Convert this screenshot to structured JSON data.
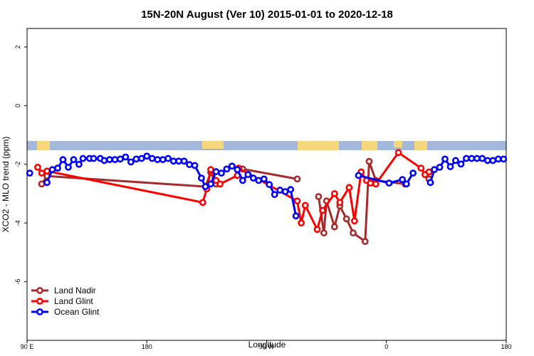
{
  "chart_data": {
    "type": "line",
    "title": "15N-20N August (Ver 10)   2015-01-01 to 2020-12-18",
    "x_label": "Longitude",
    "y_label": "XCO2 - MLO trend (ppm)",
    "xlim": [
      90,
      450
    ],
    "xticks": [
      {
        "value": 90,
        "label": "90 E"
      },
      {
        "value": 180,
        "label": "180"
      },
      {
        "value": 270,
        "label": "90 W"
      },
      {
        "value": 360,
        "label": "0"
      },
      {
        "value": 450,
        "label": "180"
      }
    ],
    "xticks_extra": [
      {
        "value": 450,
        "label": "180"
      }
    ],
    "ylim": [
      -8,
      2.63
    ],
    "yticks": [
      2,
      0,
      -2,
      -4,
      -6
    ],
    "legend": "bottom-left",
    "series": [
      {
        "name": "Land Nadir",
        "color": "#a52a2a",
        "x": [
          101,
          105,
          224,
          228,
          232,
          249,
          252,
          293,
          305,
          309,
          313,
          315,
          321,
          325,
          330,
          335,
          344,
          347,
          352,
          374,
          389,
          392
        ],
        "values": [
          -2.67,
          -2.4,
          -2.76,
          -2.28,
          -2.67,
          null,
          -2.16,
          -2.5,
          null,
          -3.1,
          -4.34,
          -3.25,
          -4.13,
          -3.42,
          -3.86,
          -4.34,
          -4.63,
          -1.9,
          -2.55,
          -2.67,
          null,
          -2.5
        ]
      },
      {
        "name": "Land Glint",
        "color": "#ff0000",
        "x": [
          98,
          101,
          105,
          222,
          225,
          228,
          232,
          235,
          248,
          249,
          293,
          296,
          299,
          308,
          312,
          321,
          325,
          332,
          336,
          341,
          345,
          348,
          352,
          369,
          386,
          389,
          392
        ],
        "values": [
          -2.1,
          -2.3,
          -2.23,
          -3.3,
          -2.84,
          -2.18,
          -2.55,
          -2.67,
          -2.38,
          -2.13,
          -3.25,
          -4.0,
          -3.4,
          -4.22,
          -3.57,
          -3.0,
          -3.3,
          -2.79,
          -3.93,
          -2.26,
          -2.55,
          -2.64,
          -2.67,
          -1.6,
          -2.13,
          -2.35,
          -2.26
        ]
      },
      {
        "name": "Ocean Glint",
        "color": "#0000ff",
        "x": [
          92,
          100,
          105,
          109,
          113,
          117,
          121,
          125,
          129,
          132,
          137,
          140,
          145,
          148,
          152,
          156,
          160,
          164,
          168,
          172,
          176,
          180,
          184,
          188,
          192,
          196,
          200,
          204,
          208,
          212,
          216,
          221,
          224,
          228,
          232,
          236,
          240,
          244,
          248,
          252,
          256,
          260,
          264,
          268,
          272,
          276,
          280,
          284,
          288,
          292,
          300,
          339,
          362,
          372,
          375,
          380,
          386,
          393,
          396,
          400,
          404,
          408,
          412,
          416,
          420,
          424,
          428,
          432,
          436,
          440,
          444,
          448
        ],
        "values": [
          -2.3,
          null,
          -2.62,
          -2.18,
          -2.13,
          -1.84,
          -2.1,
          -1.84,
          -2.0,
          -1.8,
          -1.8,
          -1.8,
          -1.8,
          -1.87,
          -1.84,
          -1.84,
          -1.82,
          -1.75,
          -1.92,
          -1.82,
          -1.8,
          -1.72,
          -1.8,
          -1.84,
          -1.84,
          -1.8,
          -1.89,
          -1.89,
          -1.89,
          -2.01,
          -2.04,
          -2.47,
          -2.76,
          -2.67,
          -2.25,
          -2.3,
          -2.16,
          -2.06,
          -2.18,
          -2.55,
          -2.35,
          -2.47,
          -2.55,
          -2.5,
          -2.69,
          -3.03,
          -2.88,
          -2.93,
          -2.86,
          -3.76,
          null,
          -2.38,
          -2.64,
          -2.52,
          -2.67,
          -2.3,
          null,
          -2.62,
          -2.18,
          -2.1,
          -1.82,
          -2.08,
          -1.87,
          -1.99,
          -1.8,
          -1.8,
          -1.8,
          -1.8,
          -1.87,
          -1.87,
          -1.82,
          -1.82
        ]
      }
    ]
  }
}
